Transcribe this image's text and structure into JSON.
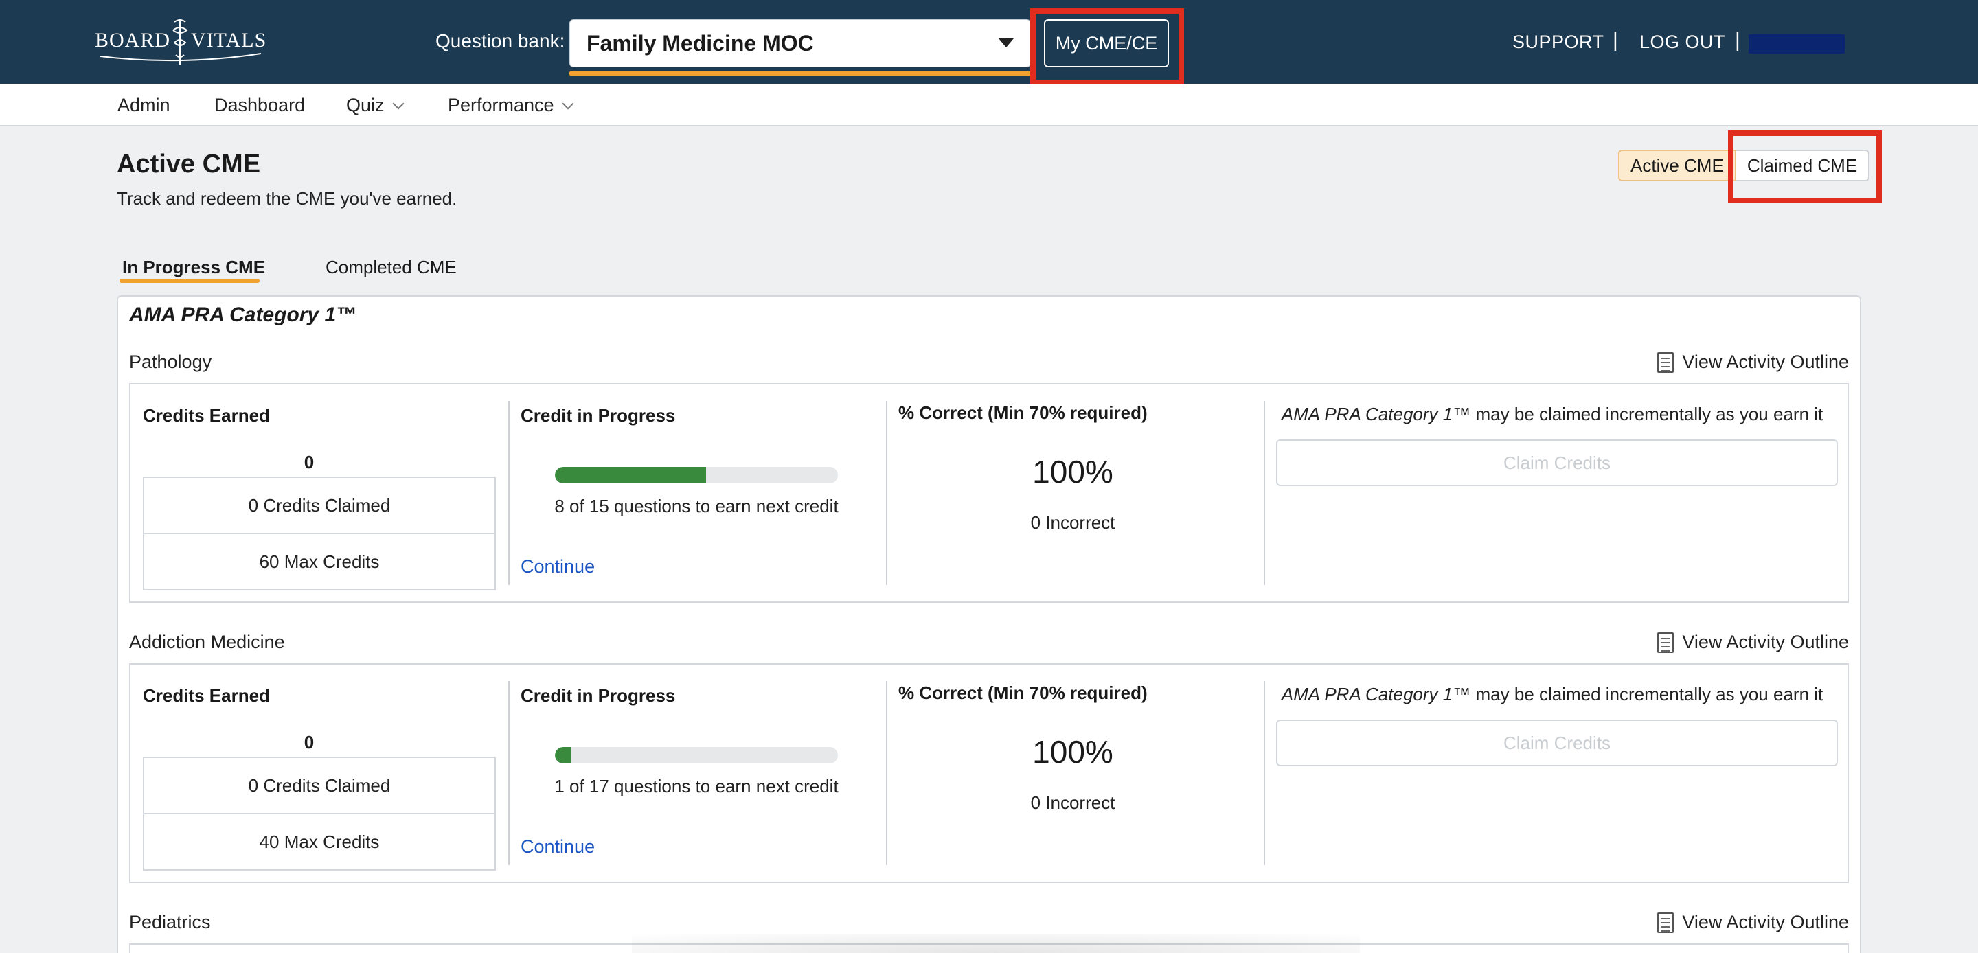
{
  "header": {
    "logo_left": "BOARD",
    "logo_right": "VITALS",
    "question_bank_label": "Question bank:",
    "question_bank_value": "Family Medicine MOC",
    "my_cme_label": "My CME/CE",
    "support_label": "SUPPORT",
    "separator": "|",
    "logout_label": "LOG OUT",
    "user_redacted_color": "#0b2570"
  },
  "nav": {
    "items": [
      {
        "label": "Admin"
      },
      {
        "label": "Dashboard"
      },
      {
        "label": "Quiz"
      },
      {
        "label": "Performance"
      }
    ]
  },
  "page": {
    "title": "Active CME",
    "subtitle": "Track and redeem the CME you've earned.",
    "toggle_active": "Active CME",
    "toggle_claimed": "Claimed CME"
  },
  "tabs": [
    {
      "label": "In Progress CME",
      "active": true
    },
    {
      "label": "Completed CME",
      "active": false
    }
  ],
  "category": {
    "title": "AMA PRA Category 1™",
    "view_outline_label": "View Activity Outline",
    "col_earned_header": "Credits Earned",
    "col_progress_header": "Credit in Progress",
    "col_correct_header": "% Correct (Min 70% required)",
    "claim_note_italic": "AMA PRA Category 1™",
    "claim_note_rest": " may be claimed incrementally as you earn it",
    "claim_button": "Claim Credits",
    "continue_label": "Continue",
    "sections": [
      {
        "name": "Pathology",
        "credits_earned": "0",
        "credits_claimed": "0 Credits Claimed",
        "max_credits": "60 Max Credits",
        "progress_fraction": 0.533,
        "progress_text": "8 of 15 questions to earn next credit",
        "percent_correct": "100%",
        "incorrect": "0 Incorrect"
      },
      {
        "name": "Addiction Medicine",
        "credits_earned": "0",
        "credits_claimed": "0 Credits Claimed",
        "max_credits": "40 Max Credits",
        "progress_fraction": 0.059,
        "progress_text": "1 of 17 questions to earn next credit",
        "percent_correct": "100%",
        "incorrect": "0 Incorrect"
      },
      {
        "name": "Pediatrics"
      }
    ]
  },
  "colors": {
    "header_bg": "#1c3a52",
    "accent_orange": "#f1a22e",
    "highlight_red": "#e02d1e",
    "progress_green": "#3a8a3e",
    "link_blue": "#1a55c4"
  }
}
